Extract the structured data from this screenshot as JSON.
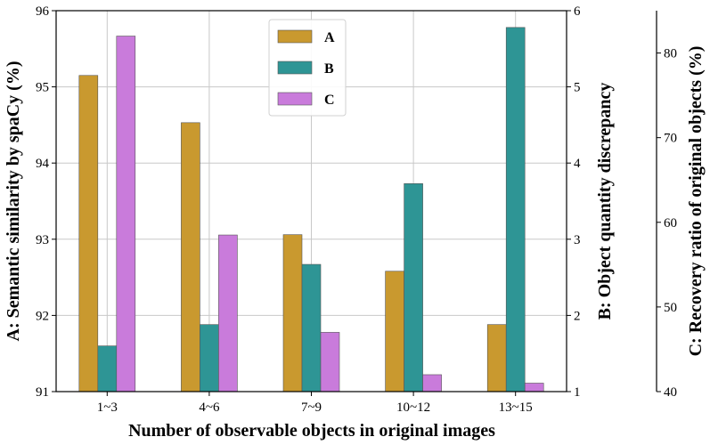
{
  "chart_data": {
    "type": "bar",
    "categories": [
      "1~3",
      "4~6",
      "7~9",
      "10~12",
      "13~15"
    ],
    "xlabel": "Number of observable objects in original images",
    "series": [
      {
        "name": "A",
        "axis": "left",
        "color": "#C9992F",
        "values": [
          95.15,
          94.53,
          93.06,
          92.58,
          91.88
        ]
      },
      {
        "name": "B",
        "axis": "right1",
        "color": "#2E9595",
        "values": [
          1.6,
          1.88,
          2.67,
          3.73,
          5.78
        ]
      },
      {
        "name": "C",
        "axis": "right2",
        "color": "#C97BDB",
        "values": [
          82.0,
          58.5,
          47.0,
          42.0,
          41.0
        ]
      }
    ],
    "axes": {
      "left": {
        "label": "A: Semantic similarity by spaCy (%)",
        "ylim": [
          91,
          96
        ],
        "ticks": [
          91,
          92,
          93,
          94,
          95,
          96
        ]
      },
      "right1": {
        "label": "B: Object quantity discrepancy",
        "ylim": [
          1,
          6
        ],
        "ticks": [
          1,
          2,
          3,
          4,
          5,
          6
        ]
      },
      "right2": {
        "label": "C: Recovery ratio of original objects (%)",
        "ylim": [
          40,
          85
        ],
        "ticks": [
          40,
          50,
          60,
          70,
          80
        ]
      }
    },
    "grid": true,
    "legend_position": "top-center"
  }
}
